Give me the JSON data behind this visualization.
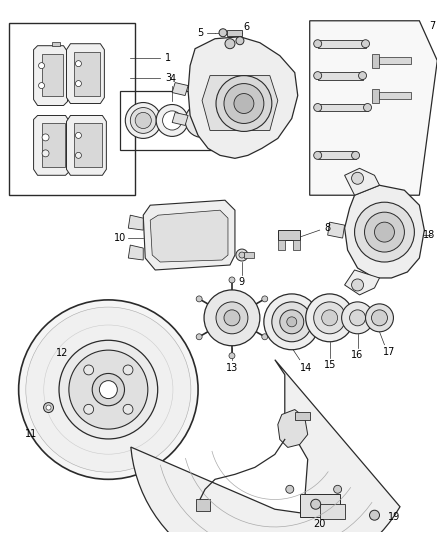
{
  "bg_color": "#ffffff",
  "fig_width": 4.38,
  "fig_height": 5.33,
  "dpi": 100,
  "label_fontsize": 7.0,
  "lc": "#2a2a2a",
  "gray_light": "#e8e8e8",
  "gray_mid": "#cccccc",
  "gray_dark": "#aaaaaa"
}
